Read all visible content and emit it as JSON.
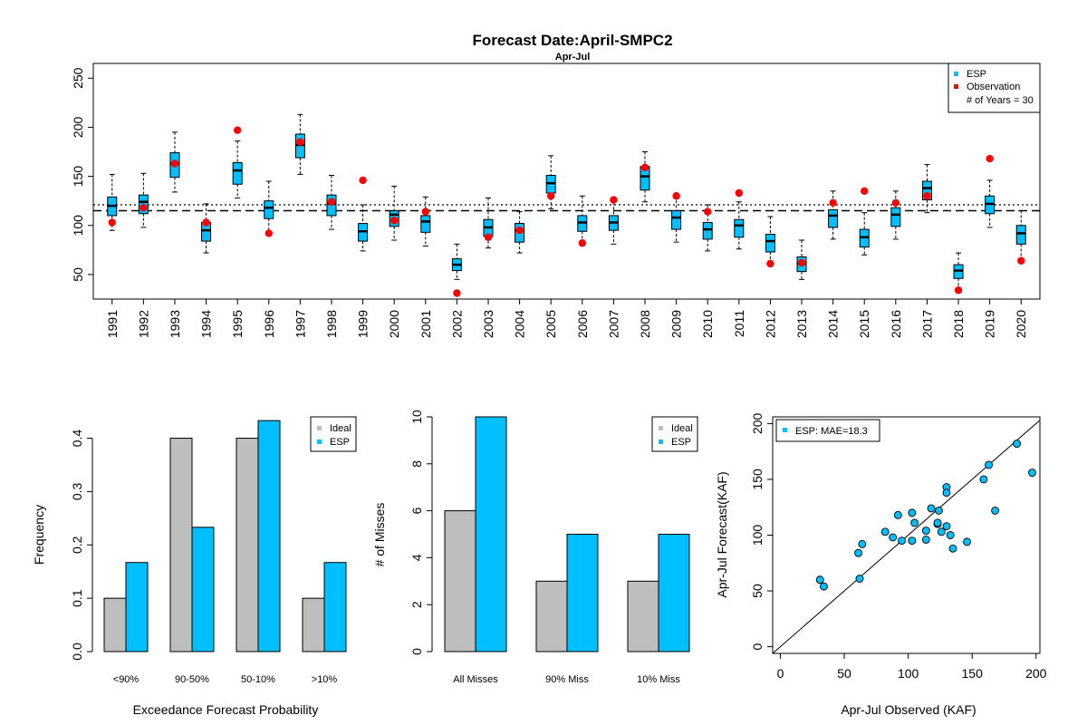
{
  "colors": {
    "esp": "#00BFFF",
    "ideal": "#BEBEBE",
    "observation": "#FF0000",
    "frame": "#000000"
  },
  "chart_data": [
    {
      "type": "box",
      "title": "Forecast Date:April-SMPC2",
      "subtitle": "Apr-Jul",
      "xlabel": "",
      "ylabel": "",
      "ylim": [
        25,
        265
      ],
      "yticks": [
        50,
        100,
        150,
        200,
        250
      ],
      "legend": {
        "position": "top-right",
        "items": [
          "ESP",
          "Observation"
        ],
        "note": "# of Years = 30"
      },
      "reference_lines": [
        {
          "style": "dotted",
          "value": 121
        },
        {
          "style": "dashed",
          "value": 115
        }
      ],
      "categories": [
        "1991",
        "1992",
        "1993",
        "1994",
        "1995",
        "1996",
        "1997",
        "1998",
        "1999",
        "2000",
        "2001",
        "2002",
        "2003",
        "2004",
        "2005",
        "2006",
        "2007",
        "2008",
        "2009",
        "2010",
        "2011",
        "2012",
        "2013",
        "2014",
        "2015",
        "2016",
        "2017",
        "2018",
        "2019",
        "2020"
      ],
      "boxes": [
        {
          "min": 95,
          "q1": 110,
          "median": 120,
          "q3": 129,
          "max": 152
        },
        {
          "min": 98,
          "q1": 112,
          "median": 124,
          "q3": 131,
          "max": 153
        },
        {
          "min": 134,
          "q1": 149,
          "median": 163,
          "q3": 174,
          "max": 195
        },
        {
          "min": 72,
          "q1": 84,
          "median": 95,
          "q3": 103,
          "max": 122
        },
        {
          "min": 128,
          "q1": 142,
          "median": 156,
          "q3": 164,
          "max": 186
        },
        {
          "min": 93,
          "q1": 107,
          "median": 118,
          "q3": 125,
          "max": 145
        },
        {
          "min": 152,
          "q1": 169,
          "median": 182,
          "q3": 193,
          "max": 213
        },
        {
          "min": 96,
          "q1": 110,
          "median": 122,
          "q3": 131,
          "max": 151
        },
        {
          "min": 74,
          "q1": 84,
          "median": 94,
          "q3": 102,
          "max": 121
        },
        {
          "min": 85,
          "q1": 99,
          "median": 111,
          "q3": 115,
          "max": 140
        },
        {
          "min": 79,
          "q1": 93,
          "median": 104,
          "q3": 110,
          "max": 129
        },
        {
          "min": 45,
          "q1": 54,
          "median": 60,
          "q3": 66,
          "max": 81
        },
        {
          "min": 77,
          "q1": 89,
          "median": 98,
          "q3": 106,
          "max": 128
        },
        {
          "min": 72,
          "q1": 83,
          "median": 95,
          "q3": 102,
          "max": 114
        },
        {
          "min": 117,
          "q1": 133,
          "median": 143,
          "q3": 151,
          "max": 171
        },
        {
          "min": 83,
          "q1": 94,
          "median": 103,
          "q3": 110,
          "max": 130
        },
        {
          "min": 81,
          "q1": 95,
          "median": 103,
          "q3": 110,
          "max": 128
        },
        {
          "min": 124,
          "q1": 136,
          "median": 150,
          "q3": 160,
          "max": 175
        },
        {
          "min": 83,
          "q1": 96,
          "median": 108,
          "q3": 115,
          "max": 130
        },
        {
          "min": 74,
          "q1": 86,
          "median": 96,
          "q3": 103,
          "max": 121
        },
        {
          "min": 76,
          "q1": 88,
          "median": 100,
          "q3": 106,
          "max": 124
        },
        {
          "min": 63,
          "q1": 73,
          "median": 84,
          "q3": 91,
          "max": 109
        },
        {
          "min": 45,
          "q1": 53,
          "median": 61,
          "q3": 68,
          "max": 85
        },
        {
          "min": 86,
          "q1": 98,
          "median": 110,
          "q3": 116,
          "max": 135
        },
        {
          "min": 70,
          "q1": 78,
          "median": 88,
          "q3": 96,
          "max": 113
        },
        {
          "min": 86,
          "q1": 99,
          "median": 111,
          "q3": 118,
          "max": 135
        },
        {
          "min": 113,
          "q1": 126,
          "median": 138,
          "q3": 145,
          "max": 162
        },
        {
          "min": 35,
          "q1": 46,
          "median": 54,
          "q3": 60,
          "max": 72
        },
        {
          "min": 98,
          "q1": 112,
          "median": 122,
          "q3": 130,
          "max": 146
        },
        {
          "min": 66,
          "q1": 81,
          "median": 92,
          "q3": 100,
          "max": 115
        }
      ],
      "observations": [
        103,
        118,
        163,
        103,
        197,
        92,
        185,
        124,
        146,
        105,
        114,
        31,
        88,
        95,
        130,
        82,
        126,
        159,
        130,
        114,
        133,
        61,
        62,
        123,
        135,
        123,
        130,
        34,
        168,
        64
      ]
    },
    {
      "type": "bar",
      "title": "",
      "xlabel": "Exceedance Forecast Probability",
      "ylabel": "Frequency",
      "ylim": [
        0,
        0.44
      ],
      "yticks": [
        0.0,
        0.1,
        0.2,
        0.3,
        0.4
      ],
      "ytick_labels": [
        "0.0",
        "0.1",
        "0.2",
        "0.3",
        "0.4"
      ],
      "categories": [
        "<90%",
        "90-50%",
        "50-10%",
        ">10%"
      ],
      "series": [
        {
          "name": "Ideal",
          "values": [
            0.1,
            0.4,
            0.4,
            0.1
          ]
        },
        {
          "name": "ESP",
          "values": [
            0.167,
            0.233,
            0.433,
            0.167
          ]
        }
      ],
      "legend": {
        "position": "top-right"
      }
    },
    {
      "type": "bar",
      "title": "",
      "xlabel": "",
      "ylabel": "# of Misses",
      "ylim": [
        0,
        10
      ],
      "yticks": [
        0,
        2,
        4,
        6,
        8,
        10
      ],
      "ytick_labels": [
        "0",
        "2",
        "4",
        "6",
        "8",
        "10"
      ],
      "categories": [
        "All Misses",
        "90% Miss",
        "10% Miss"
      ],
      "series": [
        {
          "name": "Ideal",
          "values": [
            6,
            3,
            3
          ]
        },
        {
          "name": "ESP",
          "values": [
            10,
            5,
            5
          ]
        }
      ],
      "legend": {
        "position": "top-right"
      }
    },
    {
      "type": "scatter",
      "title": "",
      "xlabel": "Apr-Jul Observed (KAF)",
      "ylabel": "Apr-Jul Forecast(KAF)",
      "xlim": [
        -6,
        203
      ],
      "ylim": [
        -6,
        206
      ],
      "xticks": [
        0,
        50,
        100,
        150,
        200
      ],
      "yticks": [
        0,
        50,
        100,
        150,
        200
      ],
      "legend": {
        "position": "top-left",
        "items": [
          "ESP: MAE=18.3"
        ]
      },
      "diagonal": "1:1 line",
      "points": [
        {
          "x": 103,
          "y": 120
        },
        {
          "x": 118,
          "y": 124
        },
        {
          "x": 163,
          "y": 163
        },
        {
          "x": 103,
          "y": 95
        },
        {
          "x": 197,
          "y": 156
        },
        {
          "x": 92,
          "y": 118
        },
        {
          "x": 185,
          "y": 182
        },
        {
          "x": 124,
          "y": 122
        },
        {
          "x": 146,
          "y": 94
        },
        {
          "x": 105,
          "y": 111
        },
        {
          "x": 114,
          "y": 104
        },
        {
          "x": 31,
          "y": 60
        },
        {
          "x": 88,
          "y": 98
        },
        {
          "x": 95,
          "y": 95
        },
        {
          "x": 130,
          "y": 143
        },
        {
          "x": 82,
          "y": 103
        },
        {
          "x": 126,
          "y": 103
        },
        {
          "x": 159,
          "y": 150
        },
        {
          "x": 130,
          "y": 108
        },
        {
          "x": 114,
          "y": 96
        },
        {
          "x": 133,
          "y": 100
        },
        {
          "x": 61,
          "y": 84
        },
        {
          "x": 62,
          "y": 61
        },
        {
          "x": 123,
          "y": 110
        },
        {
          "x": 135,
          "y": 88
        },
        {
          "x": 123,
          "y": 111
        },
        {
          "x": 130,
          "y": 138
        },
        {
          "x": 34,
          "y": 54
        },
        {
          "x": 168,
          "y": 122
        },
        {
          "x": 64,
          "y": 92
        }
      ]
    }
  ]
}
